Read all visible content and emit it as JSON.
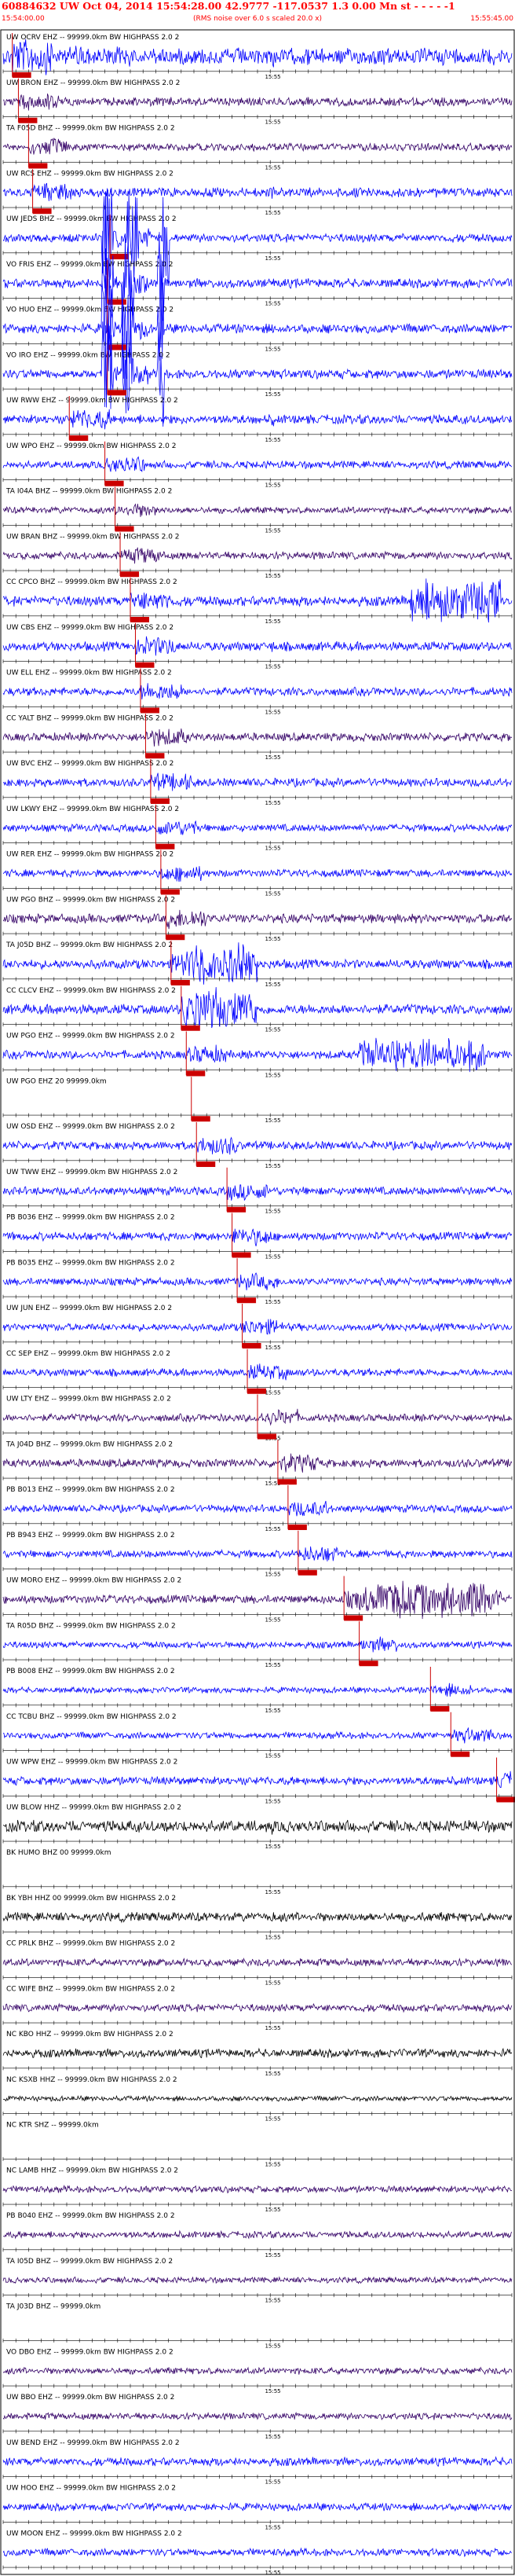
{
  "header": {
    "title": "60884632 UW Oct 04, 2014 15:54:28.00   42.9777 -117.0537   1.3 0.00 Mn st - - - - -1",
    "time_left": "15:54:00.00",
    "time_right": "15:55:45.00",
    "noise_note": "(RMS noise over 6.0 s scaled 20.0 x)"
  },
  "colors": {
    "blue": "#0000ff",
    "purple": "#330066",
    "black": "#000000",
    "pick": "#cc0000",
    "axis": "#000000"
  },
  "time_mark_label": "15:55",
  "traces": [
    {
      "label": "UW OCRV EHZ -- 99999.0km BW  HIGHPASS  2.0  2",
      "color": "blue",
      "pick": 0.018,
      "amp": 1.0,
      "onset": 0.01,
      "burst": [
        0.12,
        0.26,
        0.5
      ]
    },
    {
      "label": "UW BRON EHZ -- 99999.0km BW  HIGHPASS  2.0  2",
      "color": "purple",
      "pick": 0.03,
      "amp": 0.5
    },
    {
      "label": "TA F05D BHZ -- 99999.0km BW  HIGHPASS  2.0  2",
      "color": "purple",
      "pick": 0.05,
      "amp": 0.45
    },
    {
      "label": "UW RCS EHZ -- 99999.0km BW  HIGHPASS  2.0  2",
      "color": "blue",
      "pick": 0.058,
      "amp": 0.55
    },
    {
      "label": "UW JEDS BHZ -- 99999.0km BW  HIGHPASS  2.0  2",
      "color": "blue",
      "pick": 0.21,
      "amp": 0.5,
      "spikes": [
        0.2,
        0.21,
        0.25,
        0.26,
        0.32
      ]
    },
    {
      "label": "VO FRIS EHZ -- 99999.0km BW  HIGHPASS  2.0  2",
      "color": "blue",
      "pick": 0.205,
      "amp": 0.55,
      "spikes": [
        0.2,
        0.21,
        0.24,
        0.25,
        0.31
      ]
    },
    {
      "label": "VO HUO EHZ -- 99999.0km BW  HIGHPASS  2.0  2",
      "color": "blue",
      "pick": 0.205,
      "amp": 0.55,
      "spikes": [
        0.2,
        0.21,
        0.24,
        0.25,
        0.31
      ]
    },
    {
      "label": "VO IRO EHZ -- 99999.0km BW  HIGHPASS  2.0  2",
      "color": "blue",
      "pick": 0.205,
      "amp": 0.55,
      "spikes": [
        0.2,
        0.21,
        0.24,
        0.25,
        0.31
      ]
    },
    {
      "label": "UW RWW EHZ -- 99999.0km BW  HIGHPASS  2.0  2",
      "color": "blue",
      "pick": 0.13,
      "amp": 0.55
    },
    {
      "label": "UW WPO EHZ -- 99999.0km BW  HIGHPASS  2.0  2",
      "color": "blue",
      "pick": 0.2,
      "amp": 0.45
    },
    {
      "label": "TA I04A BHZ -- 99999.0km BW  HIGHPASS  2.0  2",
      "color": "purple",
      "pick": 0.22,
      "amp": 0.4
    },
    {
      "label": "UW BRAN BHZ -- 99999.0km BW  HIGHPASS  2.0  2",
      "color": "purple",
      "pick": 0.23,
      "amp": 0.45
    },
    {
      "label": "CC CPCO BHZ -- 99999.0km BW  HIGHPASS  2.0  2",
      "color": "blue",
      "pick": 0.25,
      "amp": 0.6,
      "burst": [
        0.8,
        0.98,
        1.0
      ]
    },
    {
      "label": "UW CBS EHZ -- 99999.0km BW  HIGHPASS  2.0  2",
      "color": "blue",
      "pick": 0.26,
      "amp": 0.55
    },
    {
      "label": "UW ELL EHZ -- 99999.0km BW  HIGHPASS  2.0  2",
      "color": "blue",
      "pick": 0.27,
      "amp": 0.5
    },
    {
      "label": "CC YALT BHZ -- 99999.0km BW  HIGHPASS  2.0  2",
      "color": "purple",
      "pick": 0.28,
      "amp": 0.5
    },
    {
      "label": "UW BVC EHZ -- 99999.0km BW  HIGHPASS  2.0  2",
      "color": "blue",
      "pick": 0.29,
      "amp": 0.5
    },
    {
      "label": "UW LKWY EHZ -- 99999.0km BW  HIGHPASS  2.0  2",
      "color": "blue",
      "pick": 0.3,
      "amp": 0.45
    },
    {
      "label": "UW RER EHZ -- 99999.0km BW  HIGHPASS  2.0  2",
      "color": "blue",
      "pick": 0.31,
      "amp": 0.45
    },
    {
      "label": "UW PGO BHZ -- 99999.0km BW  HIGHPASS  2.0  2",
      "color": "purple",
      "pick": 0.32,
      "amp": 0.55
    },
    {
      "label": "TA J05D BHZ -- 99999.0km BW  HIGHPASS  2.0  2",
      "color": "blue",
      "pick": 0.33,
      "amp": 0.55,
      "burst": [
        0.35,
        0.5,
        1.0
      ]
    },
    {
      "label": "CC CLCV EHZ -- 99999.0km BW  HIGHPASS  2.0  2",
      "color": "blue",
      "pick": 0.35,
      "amp": 0.6,
      "burst": [
        0.35,
        0.5,
        1.0
      ]
    },
    {
      "label": "UW PGO EHZ -- 99999.0km BW  HIGHPASS  2.0  2",
      "color": "blue",
      "pick": 0.36,
      "amp": 0.5,
      "burst": [
        0.7,
        0.95,
        0.8
      ]
    },
    {
      "label": "UW PGO EHZ 20 99999.0km",
      "color": "blue",
      "pick": 0.37,
      "amp": 0.0
    },
    {
      "label": "UW OSD EHZ -- 99999.0km BW  HIGHPASS  2.0  2",
      "color": "blue",
      "pick": 0.38,
      "amp": 0.5
    },
    {
      "label": "UW TWW EHZ -- 99999.0km BW  HIGHPASS  2.0  2",
      "color": "blue",
      "pick": 0.44,
      "amp": 0.5
    },
    {
      "label": "PB B036 EHZ -- 99999.0km BW  HIGHPASS  2.0  2",
      "color": "blue",
      "pick": 0.45,
      "amp": 0.5
    },
    {
      "label": "PB B035 EHZ -- 99999.0km BW  HIGHPASS  2.0  2",
      "color": "blue",
      "pick": 0.46,
      "amp": 0.45
    },
    {
      "label": "UW JUN EHZ -- 99999.0km BW  HIGHPASS  2.0  2",
      "color": "blue",
      "pick": 0.47,
      "amp": 0.45
    },
    {
      "label": "CC SEP EHZ -- 99999.0km BW  HIGHPASS  2.0  2",
      "color": "blue",
      "pick": 0.48,
      "amp": 0.45
    },
    {
      "label": "UW LTY EHZ -- 99999.0km BW  HIGHPASS  2.0  2",
      "color": "purple",
      "pick": 0.5,
      "amp": 0.45
    },
    {
      "label": "TA J04D BHZ -- 99999.0km BW  HIGHPASS  2.0  2",
      "color": "purple",
      "pick": 0.54,
      "amp": 0.5
    },
    {
      "label": "PB B013 EHZ -- 99999.0km BW  HIGHPASS  2.0  2",
      "color": "blue",
      "pick": 0.56,
      "amp": 0.45
    },
    {
      "label": "PB B943 EHZ -- 99999.0km BW  HIGHPASS  2.0  2",
      "color": "blue",
      "pick": 0.58,
      "amp": 0.45
    },
    {
      "label": "UW MORO EHZ -- 99999.0km BW  HIGHPASS  2.0  2",
      "color": "purple",
      "pick": 0.67,
      "amp": 0.5,
      "burst": [
        0.7,
        0.98,
        0.9
      ]
    },
    {
      "label": "TA R05D BHZ -- 99999.0km BW  HIGHPASS  2.0  2",
      "color": "blue",
      "pick": 0.7,
      "amp": 0.4
    },
    {
      "label": "PB B008 EHZ -- 99999.0km BW  HIGHPASS  2.0  2",
      "color": "blue",
      "pick": 0.84,
      "amp": 0.35
    },
    {
      "label": "CC TCBU BHZ -- 99999.0km BW  HIGHPASS  2.0  2",
      "color": "blue",
      "pick": 0.88,
      "amp": 0.4
    },
    {
      "label": "UW WPW EHZ -- 99999.0km BW  HIGHPASS  2.0  2",
      "color": "blue",
      "pick": 0.97,
      "amp": 0.5
    },
    {
      "label": "UW BLOW HHZ -- 99999.0km BW  HIGHPASS  2.0  2",
      "color": "black",
      "pick": null,
      "amp": 0.7
    },
    {
      "label": "BK HUMO BHZ 00 99999.0km",
      "color": "black",
      "pick": null,
      "amp": 0.0
    },
    {
      "label": "BK YBH HHZ 00 99999.0km BW  HIGHPASS  2.0  2",
      "color": "black",
      "pick": null,
      "amp": 0.55
    },
    {
      "label": "CC PRLK BHZ -- 99999.0km BW  HIGHPASS  2.0  2",
      "color": "purple",
      "pick": null,
      "amp": 0.45
    },
    {
      "label": "CC WIFE BHZ -- 99999.0km BW  HIGHPASS  2.0  2",
      "color": "purple",
      "pick": null,
      "amp": 0.45
    },
    {
      "label": "NC KBO HHZ -- 99999.0km BW  HIGHPASS  2.0  2",
      "color": "black",
      "pick": null,
      "amp": 0.5
    },
    {
      "label": "NC KSXB HHZ -- 99999.0km BW  HIGHPASS  2.0  2",
      "color": "black",
      "pick": null,
      "amp": 0.3
    },
    {
      "label": "NC KTR SHZ -- 99999.0km",
      "color": "black",
      "pick": null,
      "amp": 0.0
    },
    {
      "label": "NC LAMB HHZ -- 99999.0km BW  HIGHPASS  2.0  2",
      "color": "purple",
      "pick": null,
      "amp": 0.4
    },
    {
      "label": "PB B040 EHZ -- 99999.0km BW  HIGHPASS  2.0  2",
      "color": "purple",
      "pick": null,
      "amp": 0.4
    },
    {
      "label": "TA I05D BHZ -- 99999.0km BW  HIGHPASS  2.0  2",
      "color": "purple",
      "pick": null,
      "amp": 0.35
    },
    {
      "label": "TA J03D BHZ -- 99999.0km",
      "color": "black",
      "pick": null,
      "amp": 0.0
    },
    {
      "label": "VO DBO EHZ -- 99999.0km BW  HIGHPASS  2.0  2",
      "color": "purple",
      "pick": null,
      "amp": 0.4
    },
    {
      "label": "UW BBO EHZ -- 99999.0km BW  HIGHPASS  2.0  2",
      "color": "purple",
      "pick": null,
      "amp": 0.4
    },
    {
      "label": "UW BEND EHZ -- 99999.0km BW  HIGHPASS  2.0  2",
      "color": "blue",
      "pick": null,
      "amp": 0.5
    },
    {
      "label": "UW HOO EHZ -- 99999.0km BW  HIGHPASS  2.0  2",
      "color": "blue",
      "pick": null,
      "amp": 0.45
    },
    {
      "label": "UW MOON EHZ -- 99999.0km BW  HIGHPASS  2.0  2",
      "color": "blue",
      "pick": null,
      "amp": 0.45
    }
  ]
}
